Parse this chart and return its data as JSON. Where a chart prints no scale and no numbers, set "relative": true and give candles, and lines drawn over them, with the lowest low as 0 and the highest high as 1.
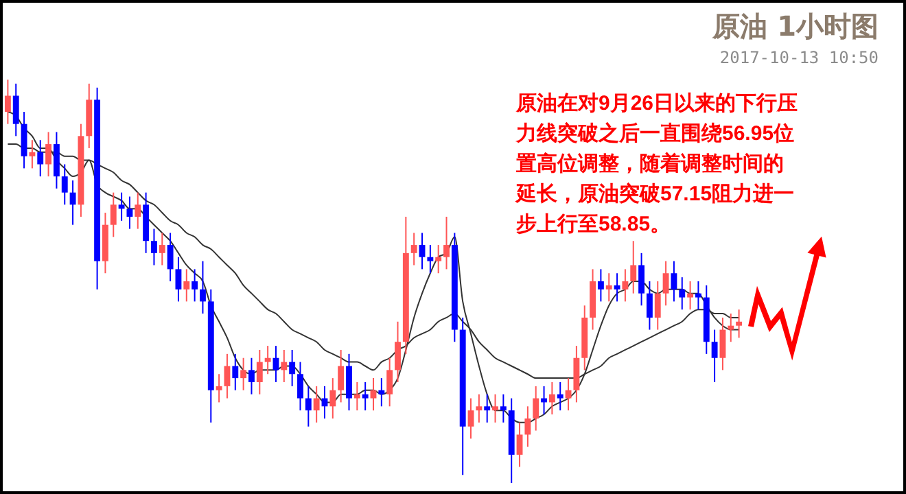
{
  "chart_data": {
    "type": "candlestick",
    "title": "原油 1小时图",
    "subtitle": "2017-10-13 10:50",
    "relative": true,
    "annotations": [
      "原油在对9月26日以来的下行压力线突破之后一直围绕56.95位置高位调整，随着调整时间的延长，原油突破57.15阻力进一步上行至58.85。"
    ],
    "categories": [
      null,
      null,
      null,
      null,
      null,
      null,
      null,
      null,
      null,
      null,
      null,
      null,
      null,
      null,
      null,
      null,
      null,
      null,
      null,
      null,
      null,
      null,
      null,
      null,
      null,
      null,
      null,
      null,
      null,
      null,
      null,
      null,
      null,
      null,
      null,
      null,
      null,
      null,
      null,
      null,
      null,
      null,
      null,
      null,
      null,
      null,
      null,
      null,
      null,
      null,
      null,
      null,
      null,
      null,
      null,
      null,
      null,
      null,
      null,
      null,
      null,
      null,
      null,
      null,
      null,
      null,
      null,
      null,
      null,
      null,
      null,
      null,
      null,
      null,
      null,
      null,
      null,
      null,
      null,
      null,
      null,
      null,
      null,
      null,
      null,
      null,
      null,
      null,
      null,
      null,
      null
    ],
    "ohlc": [
      [
        0.92,
        1.0,
        0.89,
        0.96
      ],
      [
        0.96,
        0.99,
        0.86,
        0.89
      ],
      [
        0.89,
        0.92,
        0.78,
        0.81
      ],
      [
        0.81,
        0.85,
        0.78,
        0.82
      ],
      [
        0.82,
        0.85,
        0.76,
        0.79
      ],
      [
        0.79,
        0.87,
        0.76,
        0.84
      ],
      [
        0.84,
        0.87,
        0.73,
        0.76
      ],
      [
        0.76,
        0.79,
        0.69,
        0.72
      ],
      [
        0.72,
        0.75,
        0.64,
        0.69
      ],
      [
        0.69,
        0.89,
        0.66,
        0.86
      ],
      [
        0.86,
        0.99,
        0.83,
        0.95
      ],
      [
        0.95,
        0.98,
        0.48,
        0.55
      ],
      [
        0.55,
        0.67,
        0.52,
        0.64
      ],
      [
        0.64,
        0.72,
        0.61,
        0.69
      ],
      [
        0.69,
        0.72,
        0.65,
        0.68
      ],
      [
        0.68,
        0.71,
        0.63,
        0.66
      ],
      [
        0.66,
        0.72,
        0.63,
        0.69
      ],
      [
        0.69,
        0.72,
        0.57,
        0.6
      ],
      [
        0.6,
        0.63,
        0.54,
        0.57
      ],
      [
        0.57,
        0.62,
        0.54,
        0.59
      ],
      [
        0.59,
        0.62,
        0.5,
        0.53
      ],
      [
        0.53,
        0.56,
        0.45,
        0.48
      ],
      [
        0.48,
        0.53,
        0.45,
        0.5
      ],
      [
        0.5,
        0.53,
        0.45,
        0.48
      ],
      [
        0.48,
        0.55,
        0.42,
        0.45
      ],
      [
        0.45,
        0.48,
        0.15,
        0.23
      ],
      [
        0.23,
        0.27,
        0.2,
        0.24
      ],
      [
        0.24,
        0.32,
        0.21,
        0.29
      ],
      [
        0.29,
        0.32,
        0.23,
        0.26
      ],
      [
        0.26,
        0.31,
        0.23,
        0.28
      ],
      [
        0.28,
        0.31,
        0.22,
        0.25
      ],
      [
        0.25,
        0.33,
        0.22,
        0.3
      ],
      [
        0.3,
        0.34,
        0.27,
        0.31
      ],
      [
        0.31,
        0.34,
        0.25,
        0.28
      ],
      [
        0.28,
        0.33,
        0.25,
        0.3
      ],
      [
        0.3,
        0.33,
        0.24,
        0.27
      ],
      [
        0.27,
        0.3,
        0.18,
        0.21
      ],
      [
        0.21,
        0.24,
        0.14,
        0.18
      ],
      [
        0.18,
        0.24,
        0.15,
        0.21
      ],
      [
        0.21,
        0.24,
        0.16,
        0.19
      ],
      [
        0.19,
        0.26,
        0.16,
        0.23
      ],
      [
        0.23,
        0.33,
        0.2,
        0.29
      ],
      [
        0.29,
        0.32,
        0.18,
        0.21
      ],
      [
        0.21,
        0.25,
        0.18,
        0.22
      ],
      [
        0.22,
        0.25,
        0.18,
        0.21
      ],
      [
        0.21,
        0.26,
        0.18,
        0.23
      ],
      [
        0.23,
        0.26,
        0.19,
        0.22
      ],
      [
        0.22,
        0.31,
        0.19,
        0.28
      ],
      [
        0.28,
        0.4,
        0.25,
        0.35
      ],
      [
        0.35,
        0.66,
        0.32,
        0.57
      ],
      [
        0.57,
        0.62,
        0.54,
        0.59
      ],
      [
        0.59,
        0.62,
        0.53,
        0.56
      ],
      [
        0.56,
        0.59,
        0.52,
        0.55
      ],
      [
        0.55,
        0.59,
        0.52,
        0.56
      ],
      [
        0.56,
        0.66,
        0.53,
        0.59
      ],
      [
        0.59,
        0.62,
        0.35,
        0.38
      ],
      [
        0.38,
        0.41,
        0.02,
        0.14
      ],
      [
        0.14,
        0.21,
        0.11,
        0.18
      ],
      [
        0.18,
        0.22,
        0.15,
        0.19
      ],
      [
        0.19,
        0.22,
        0.15,
        0.18
      ],
      [
        0.18,
        0.22,
        0.15,
        0.19
      ],
      [
        0.19,
        0.22,
        0.15,
        0.18
      ],
      [
        0.18,
        0.21,
        0.0,
        0.07
      ],
      [
        0.07,
        0.15,
        0.04,
        0.12
      ],
      [
        0.12,
        0.19,
        0.09,
        0.16
      ],
      [
        0.16,
        0.24,
        0.13,
        0.21
      ],
      [
        0.21,
        0.24,
        0.17,
        0.2
      ],
      [
        0.2,
        0.25,
        0.17,
        0.22
      ],
      [
        0.22,
        0.25,
        0.18,
        0.21
      ],
      [
        0.21,
        0.26,
        0.18,
        0.23
      ],
      [
        0.23,
        0.34,
        0.2,
        0.31
      ],
      [
        0.31,
        0.44,
        0.28,
        0.41
      ],
      [
        0.41,
        0.53,
        0.38,
        0.5
      ],
      [
        0.5,
        0.53,
        0.45,
        0.48
      ],
      [
        0.48,
        0.52,
        0.45,
        0.49
      ],
      [
        0.49,
        0.52,
        0.45,
        0.48
      ],
      [
        0.48,
        0.53,
        0.45,
        0.5
      ],
      [
        0.5,
        0.6,
        0.47,
        0.54
      ],
      [
        0.54,
        0.57,
        0.44,
        0.47
      ],
      [
        0.47,
        0.5,
        0.38,
        0.41
      ],
      [
        0.41,
        0.5,
        0.38,
        0.47
      ],
      [
        0.47,
        0.55,
        0.44,
        0.52
      ],
      [
        0.52,
        0.55,
        0.45,
        0.48
      ],
      [
        0.48,
        0.51,
        0.43,
        0.46
      ],
      [
        0.46,
        0.5,
        0.43,
        0.47
      ],
      [
        0.47,
        0.5,
        0.43,
        0.46
      ],
      [
        0.46,
        0.49,
        0.32,
        0.35
      ],
      [
        0.35,
        0.38,
        0.25,
        0.31
      ],
      [
        0.31,
        0.41,
        0.28,
        0.38
      ],
      [
        0.38,
        0.42,
        0.35,
        0.39
      ],
      [
        0.39,
        0.43,
        0.36,
        0.4
      ]
    ],
    "colors": [
      "#ff5555",
      "#0000ff",
      "#0000ff",
      "#ff5555",
      "#0000ff",
      "#ff5555",
      "#0000ff",
      "#0000ff",
      "#0000ff",
      "#ff5555",
      "#ff5555",
      "#0000ff",
      "#ff5555",
      "#ff5555",
      "#0000ff",
      "#0000ff",
      "#ff5555",
      "#0000ff",
      "#0000ff",
      "#ff5555",
      "#0000ff",
      "#0000ff",
      "#ff5555",
      "#0000ff",
      "#0000ff",
      "#0000ff",
      "#ff5555",
      "#ff5555",
      "#0000ff",
      "#ff5555",
      "#0000ff",
      "#ff5555",
      "#ff5555",
      "#0000ff",
      "#ff5555",
      "#0000ff",
      "#0000ff",
      "#0000ff",
      "#ff5555",
      "#0000ff",
      "#ff5555",
      "#ff5555",
      "#0000ff",
      "#ff5555",
      "#0000ff",
      "#ff5555",
      "#0000ff",
      "#ff5555",
      "#ff5555",
      "#ff5555",
      "#ff5555",
      "#0000ff",
      "#0000ff",
      "#ff5555",
      "#ff5555",
      "#0000ff",
      "#0000ff",
      "#ff5555",
      "#ff5555",
      "#0000ff",
      "#ff5555",
      "#0000ff",
      "#0000ff",
      "#ff5555",
      "#ff5555",
      "#ff5555",
      "#0000ff",
      "#ff5555",
      "#0000ff",
      "#ff5555",
      "#ff5555",
      "#ff5555",
      "#ff5555",
      "#0000ff",
      "#ff5555",
      "#0000ff",
      "#ff5555",
      "#ff5555",
      "#0000ff",
      "#0000ff",
      "#ff5555",
      "#ff5555",
      "#0000ff",
      "#0000ff",
      "#ff5555",
      "#0000ff",
      "#0000ff",
      "#0000ff",
      "#ff5555",
      "#ff5555",
      "#ff5555"
    ],
    "series": [
      {
        "type": "line",
        "color": "#333333",
        "values": [
          0.92,
          0.91,
          0.88,
          0.86,
          0.83,
          0.83,
          0.8,
          0.78,
          0.76,
          0.77,
          0.8,
          0.74,
          0.72,
          0.71,
          0.7,
          0.68,
          0.68,
          0.66,
          0.64,
          0.62,
          0.6,
          0.57,
          0.54,
          0.52,
          0.5,
          0.44,
          0.4,
          0.36,
          0.31,
          0.28,
          0.27,
          0.28,
          0.28,
          0.28,
          0.29,
          0.29,
          0.27,
          0.24,
          0.22,
          0.2,
          0.2,
          0.22,
          0.22,
          0.22,
          0.23,
          0.23,
          0.22,
          0.23,
          0.26,
          0.33,
          0.41,
          0.47,
          0.52,
          0.56,
          0.57,
          0.61,
          0.45,
          0.37,
          0.29,
          0.22,
          0.18,
          0.18,
          0.16,
          0.15,
          0.15,
          0.16,
          0.17,
          0.19,
          0.2,
          0.21,
          0.23,
          0.27,
          0.33,
          0.39,
          0.44,
          0.47,
          0.48,
          0.5,
          0.5,
          0.48,
          0.47,
          0.48,
          0.48,
          0.48,
          0.47,
          0.47,
          0.44,
          0.41,
          0.39,
          0.38,
          0.38
        ]
      },
      {
        "type": "line",
        "color": "#333333",
        "values": [
          0.84,
          0.84,
          0.83,
          0.83,
          0.82,
          0.82,
          0.82,
          0.81,
          0.81,
          0.8,
          0.8,
          0.79,
          0.78,
          0.77,
          0.75,
          0.74,
          0.72,
          0.7,
          0.69,
          0.67,
          0.65,
          0.64,
          0.62,
          0.61,
          0.59,
          0.58,
          0.56,
          0.54,
          0.52,
          0.49,
          0.47,
          0.45,
          0.43,
          0.42,
          0.4,
          0.38,
          0.37,
          0.36,
          0.35,
          0.33,
          0.32,
          0.31,
          0.3,
          0.3,
          0.29,
          0.28,
          0.3,
          0.31,
          0.33,
          0.34,
          0.36,
          0.37,
          0.38,
          0.4,
          0.41,
          0.42,
          0.4,
          0.38,
          0.35,
          0.33,
          0.31,
          0.3,
          0.29,
          0.28,
          0.27,
          0.26,
          0.26,
          0.26,
          0.26,
          0.26,
          0.26,
          0.27,
          0.28,
          0.29,
          0.31,
          0.32,
          0.33,
          0.34,
          0.35,
          0.36,
          0.37,
          0.38,
          0.39,
          0.4,
          0.42,
          0.43,
          0.43,
          0.42,
          0.42,
          0.41,
          0.41
        ]
      }
    ]
  }
}
